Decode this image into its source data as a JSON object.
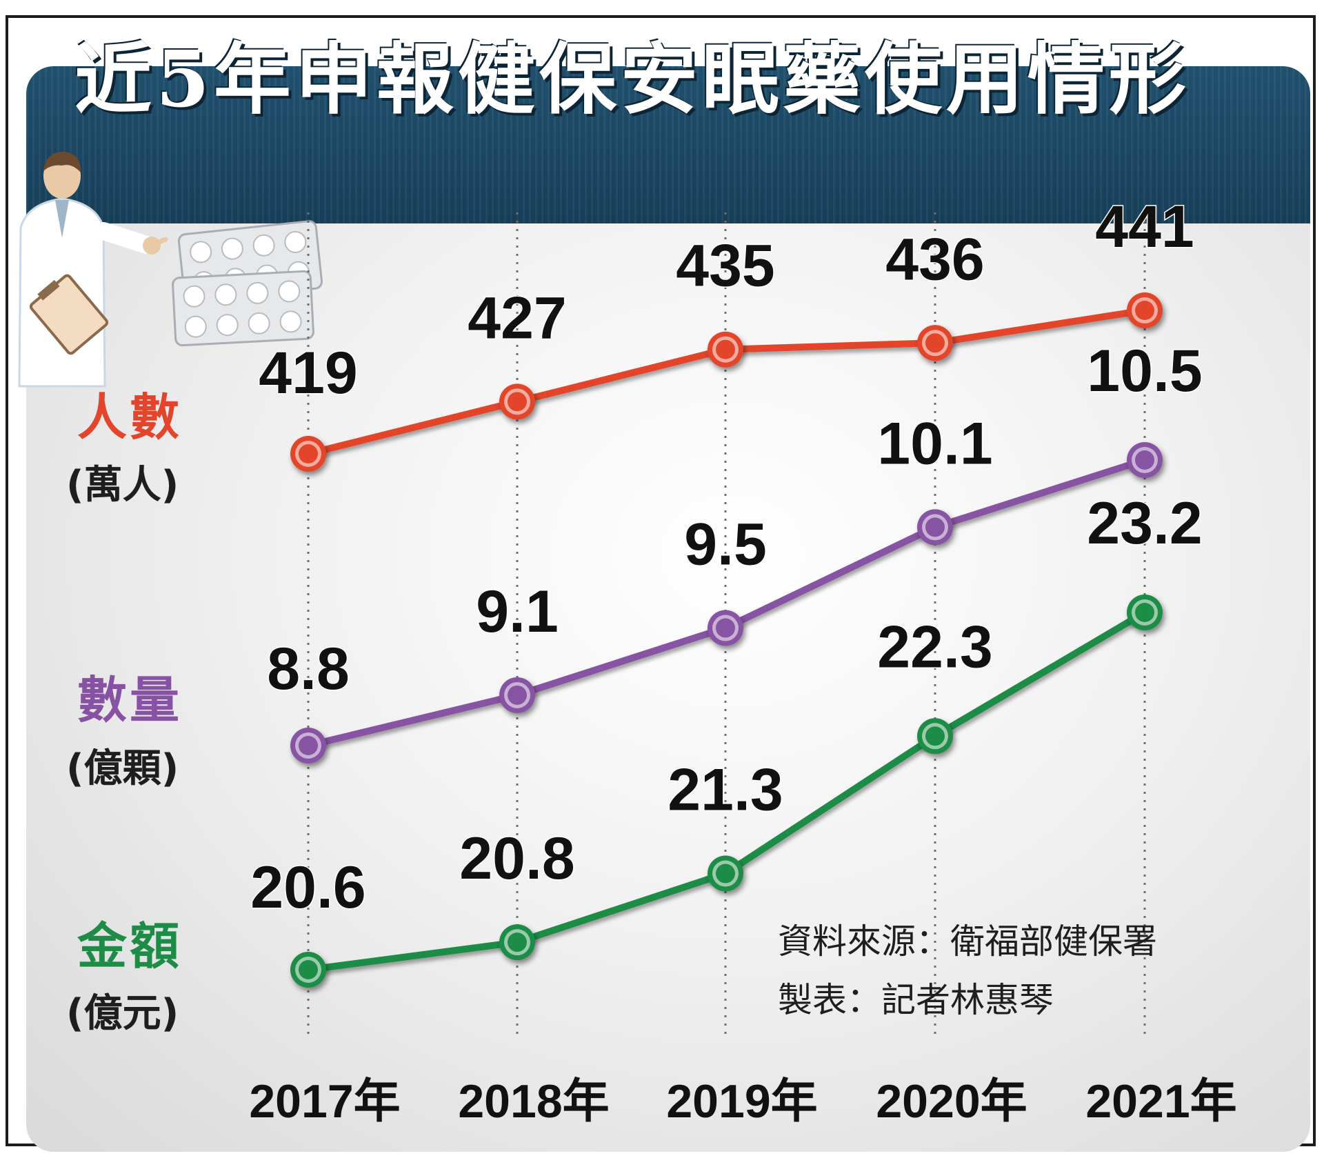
{
  "chart_data": {
    "type": "line",
    "title": "近5年申報健保安眠藥使用情形",
    "categories": [
      "2017年",
      "2018年",
      "2019年",
      "2020年",
      "2021年"
    ],
    "series": [
      {
        "name": "人數",
        "unit": "(萬人)",
        "color": "#e2452b",
        "values": [
          419,
          427,
          435,
          436,
          441
        ],
        "labels": [
          "419",
          "427",
          "435",
          "436",
          "441"
        ]
      },
      {
        "name": "數量",
        "unit": "(億顆)",
        "color": "#8752a3",
        "values": [
          8.8,
          9.1,
          9.5,
          10.1,
          10.5
        ],
        "labels": [
          "8.8",
          "9.1",
          "9.5",
          "10.1",
          "10.5"
        ]
      },
      {
        "name": "金額",
        "unit": "(億元)",
        "color": "#1e8c46",
        "values": [
          20.6,
          20.8,
          21.3,
          22.3,
          23.2
        ],
        "labels": [
          "20.6",
          "20.8",
          "21.3",
          "22.3",
          "23.2"
        ]
      }
    ],
    "grid": "vertical dotted lines at each year",
    "source": "資料來源：衛福部健保署",
    "credit": "製表：記者林惠琴"
  }
}
